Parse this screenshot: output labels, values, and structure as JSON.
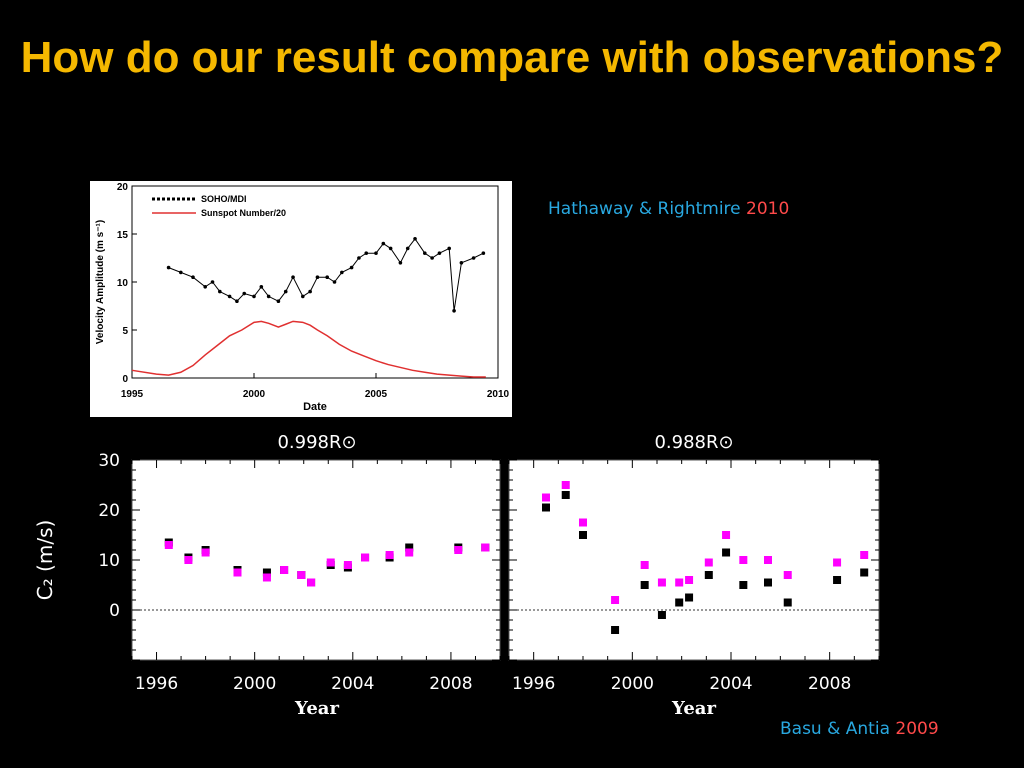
{
  "slide": {
    "title": "How do our result compare with observations?"
  },
  "credits": {
    "top": {
      "authors": "Hathaway & Rightmire",
      "year": "2010"
    },
    "bottom": {
      "authors": "Basu & Antia",
      "year": "2009"
    }
  },
  "colors": {
    "title": "#f5b800",
    "authors": "#29a8e0",
    "year": "#ff4a4a",
    "magenta": "#ff00ff",
    "sunspot": "#e03030"
  },
  "chart_data": [
    {
      "type": "line",
      "xlabel": "Date",
      "ylabel": "Velocity Amplitude (m s⁻¹)",
      "xlim": [
        1995,
        2010
      ],
      "ylim": [
        0,
        20
      ],
      "xticks": [
        1995,
        2000,
        2005,
        2010
      ],
      "yticks": [
        0,
        5,
        10,
        15,
        20
      ],
      "legend_position": "top-left",
      "series": [
        {
          "name": "SOHO/MDI",
          "x": [
            1996.5,
            1997.0,
            1997.5,
            1998.0,
            1998.3,
            1998.6,
            1999.0,
            1999.3,
            1999.6,
            2000.0,
            2000.3,
            2000.6,
            2001.0,
            2001.3,
            2001.6,
            2002.0,
            2002.3,
            2002.6,
            2003.0,
            2003.3,
            2003.6,
            2004.0,
            2004.3,
            2004.6,
            2005.0,
            2005.3,
            2005.6,
            2006.0,
            2006.3,
            2006.6,
            2007.0,
            2007.3,
            2007.6,
            2008.0,
            2008.2,
            2008.5,
            2009.0,
            2009.4
          ],
          "y": [
            11.5,
            11.0,
            10.5,
            9.5,
            10.0,
            9.0,
            8.5,
            8.0,
            8.8,
            8.5,
            9.5,
            8.5,
            8.0,
            9.0,
            10.5,
            8.5,
            9.0,
            10.5,
            10.5,
            10.0,
            11.0,
            11.5,
            12.5,
            13.0,
            13.0,
            14.0,
            13.5,
            12.0,
            13.5,
            14.5,
            13.0,
            12.5,
            13.0,
            13.5,
            7.0,
            12.0,
            12.5,
            13.0
          ]
        },
        {
          "name": "Sunspot Number/20",
          "x": [
            1995.0,
            1996.0,
            1996.5,
            1997.0,
            1997.5,
            1998.0,
            1998.5,
            1999.0,
            1999.5,
            2000.0,
            2000.3,
            2000.6,
            2001.0,
            2001.3,
            2001.6,
            2002.0,
            2002.3,
            2002.6,
            2003.0,
            2003.5,
            2004.0,
            2004.5,
            2005.0,
            2005.5,
            2006.0,
            2006.5,
            2007.0,
            2007.5,
            2008.0,
            2008.5,
            2009.0,
            2009.5
          ],
          "y": [
            0.8,
            0.4,
            0.3,
            0.6,
            1.3,
            2.4,
            3.4,
            4.4,
            5.0,
            5.8,
            5.9,
            5.7,
            5.3,
            5.6,
            5.9,
            5.8,
            5.5,
            5.0,
            4.4,
            3.5,
            2.8,
            2.3,
            1.8,
            1.4,
            1.1,
            0.8,
            0.6,
            0.4,
            0.3,
            0.2,
            0.1,
            0.1
          ]
        }
      ]
    },
    {
      "type": "scatter",
      "title": "0.998R⊙",
      "xlabel": "Year",
      "ylabel": "C₂ (m/s)",
      "xlim": [
        1995,
        2010
      ],
      "ylim": [
        -10,
        30
      ],
      "xticks": [
        1996,
        2000,
        2004,
        2008
      ],
      "yticks": [
        0,
        10,
        20,
        30
      ],
      "reference_line_y": 0,
      "series": [
        {
          "name": "black",
          "x": [
            1996.5,
            1997.3,
            1998.0,
            1999.3,
            2000.5,
            2001.2,
            2001.9,
            2002.3,
            2003.1,
            2003.8,
            2004.5,
            2005.5,
            2006.3,
            2008.3,
            2009.4
          ],
          "y": [
            13.5,
            10.5,
            12.0,
            8.0,
            7.5,
            8.0,
            7.0,
            5.5,
            9.0,
            8.5,
            10.5,
            10.5,
            12.5,
            12.5,
            12.5
          ]
        },
        {
          "name": "magenta",
          "x": [
            1996.5,
            1997.3,
            1998.0,
            1999.3,
            2000.5,
            2001.2,
            2001.9,
            2002.3,
            2003.1,
            2003.8,
            2004.5,
            2005.5,
            2006.3,
            2008.3,
            2009.4
          ],
          "y": [
            13.0,
            10.0,
            11.5,
            7.5,
            6.5,
            8.0,
            7.0,
            5.5,
            9.5,
            9.0,
            10.5,
            11.0,
            11.5,
            12.0,
            12.5
          ]
        }
      ]
    },
    {
      "type": "scatter",
      "title": "0.988R⊙",
      "xlabel": "Year",
      "xlim": [
        1995,
        2010
      ],
      "ylim": [
        -10,
        30
      ],
      "xticks": [
        1996,
        2000,
        2004,
        2008
      ],
      "reference_line_y": 0,
      "series": [
        {
          "name": "black",
          "x": [
            1996.5,
            1997.3,
            1998.0,
            1999.3,
            2000.5,
            2001.2,
            2001.9,
            2002.3,
            2003.1,
            2003.8,
            2004.5,
            2005.5,
            2006.3,
            2008.3,
            2009.4
          ],
          "y": [
            20.5,
            23.0,
            15.0,
            -4.0,
            5.0,
            -1.0,
            1.5,
            2.5,
            7.0,
            11.5,
            5.0,
            5.5,
            1.5,
            6.0,
            7.5
          ]
        },
        {
          "name": "magenta",
          "x": [
            1996.5,
            1997.3,
            1998.0,
            1999.3,
            2000.5,
            2001.2,
            2001.9,
            2002.3,
            2003.1,
            2003.8,
            2004.5,
            2005.5,
            2006.3,
            2008.3,
            2009.4
          ],
          "y": [
            22.5,
            25.0,
            17.5,
            2.0,
            9.0,
            5.5,
            5.5,
            6.0,
            9.5,
            15.0,
            10.0,
            10.0,
            7.0,
            9.5,
            11.0
          ]
        }
      ]
    }
  ]
}
